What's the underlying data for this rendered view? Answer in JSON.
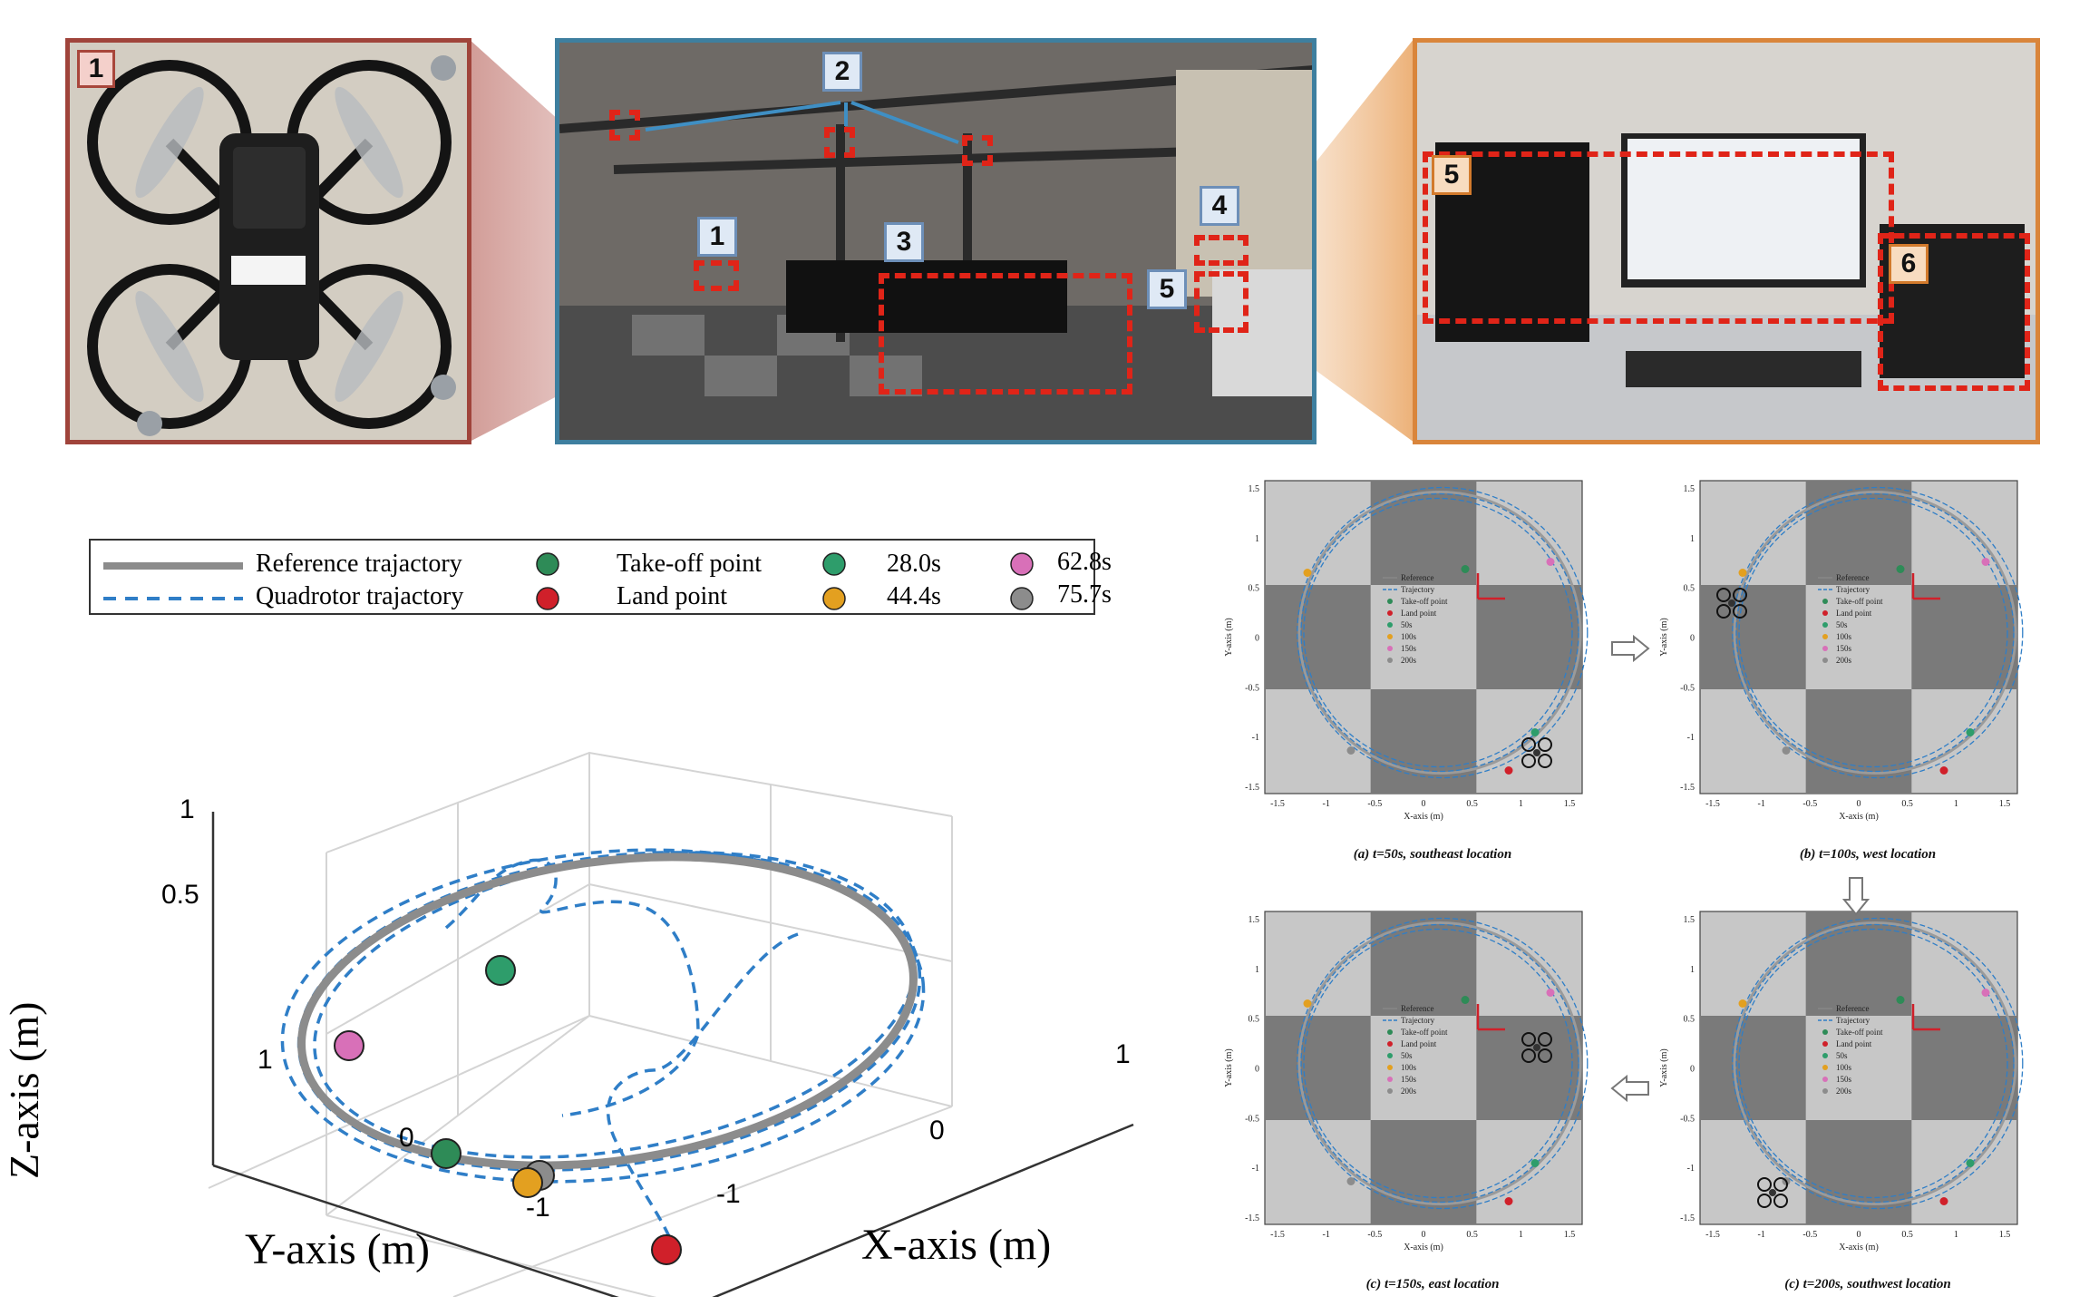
{
  "photos": {
    "drone_photo": {
      "tag": "1"
    },
    "arena_photo": {
      "tags": [
        "2",
        "1",
        "3",
        "4",
        "5"
      ]
    },
    "desk_photo": {
      "tags": [
        "5",
        "6"
      ]
    }
  },
  "colors": {
    "blue_frame": "#3e7f9f",
    "red_frame": "#a0443b",
    "orange_frame": "#d9853b",
    "dashed_box": "#e02418",
    "reference": "#8c8c8c",
    "trajectory": "#2f7ec7",
    "takeoff": "#2e8b57",
    "land": "#d0202a",
    "t1": "#2e9d6b",
    "t2": "#e3a020",
    "t3": "#d870b8",
    "t4": "#8c8c8c"
  },
  "plot3d": {
    "legend": {
      "reference": "Reference trajactory",
      "quadrotor": "Quadrotor trajactory",
      "takeoff": "Take-off point",
      "land": "Land point",
      "t1": "28.0s",
      "t2": "44.4s",
      "t3": "62.8s",
      "t4": "75.7s"
    },
    "zlabel": "Z-axis (m)",
    "ylabel": "Y-axis (m)",
    "xlabel": "X-axis (m)",
    "zticks": [
      "1",
      "0.5"
    ],
    "yticks": [
      "1",
      "0",
      "-1"
    ],
    "xticks": [
      "-1",
      "0",
      "1"
    ]
  },
  "chart_data": {
    "type": "scatter",
    "title": "",
    "xlabel": "X-axis (m)",
    "ylabel": "Y-axis (m)",
    "zlabel": "Z-axis (m)",
    "series": [
      {
        "name": "Reference trajactory"
      },
      {
        "name": "Quadrotor trajactory"
      },
      {
        "name": "Take-off point"
      },
      {
        "name": "Land point"
      },
      {
        "name": "28.0s"
      },
      {
        "name": "44.4s"
      },
      {
        "name": "62.8s"
      },
      {
        "name": "75.7s"
      }
    ]
  },
  "snapshots": {
    "panels": [
      {
        "caption": "(a) t=50s, southeast location"
      },
      {
        "caption": "(b) t=100s, west location"
      },
      {
        "caption": "(c) t=150s, east location"
      },
      {
        "caption": "(c) t=200s, southwest location"
      }
    ],
    "ylabel": "Y-axis (m)",
    "xlabel": "X-axis (m)",
    "yticks": [
      "1.5",
      "1",
      "0.5",
      "0",
      "-0.5",
      "-1",
      "-1.5"
    ],
    "xticks": [
      "-1.5",
      "-1",
      "-0.5",
      "0",
      "0.5",
      "1",
      "1.5"
    ],
    "legend": [
      "Reference",
      "Trajectory",
      "Take-off point",
      "Land point",
      "50s",
      "100s",
      "150s",
      "200s"
    ]
  }
}
